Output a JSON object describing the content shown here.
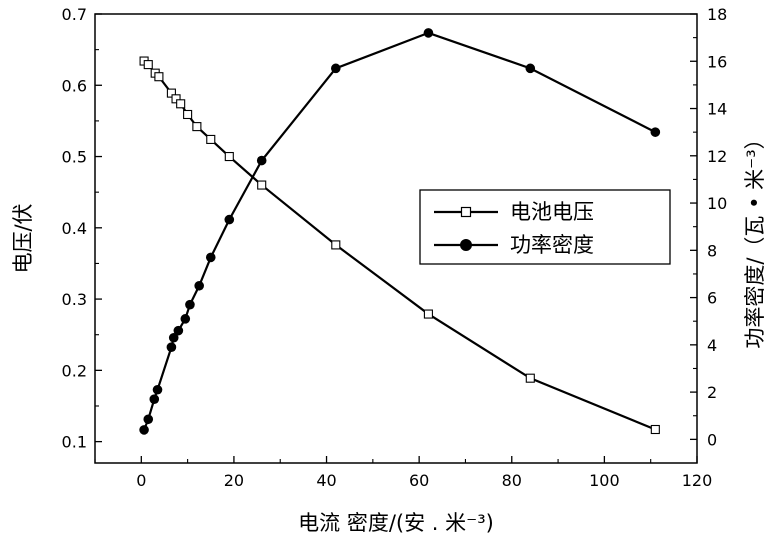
{
  "chart_data": {
    "type": "line",
    "xlabel": "电流 密度/(安 . 米⁻³)",
    "ylabel_left": "电压/伏",
    "ylabel_right": "功率密度/（瓦 • 米⁻³）",
    "xlim": [
      -10,
      120
    ],
    "ylim_left": [
      0.07,
      0.7
    ],
    "ylim_right": [
      -1,
      18
    ],
    "x_ticks": [
      "0",
      "20",
      "40",
      "60",
      "80",
      "100",
      "120"
    ],
    "y_left_ticks": [
      "0.1",
      "0.2",
      "0.3",
      "0.4",
      "0.5",
      "0.6",
      "0.7"
    ],
    "y_right_ticks": [
      "0",
      "2",
      "4",
      "6",
      "8",
      "10",
      "12",
      "14",
      "16",
      "18"
    ],
    "legend_position": "center-right",
    "series": [
      {
        "name": "电池电压",
        "axis": "left",
        "marker": "open-square",
        "color": "#000000",
        "x": [
          0.6,
          1.5,
          3.0,
          3.8,
          6.5,
          7.5,
          8.5,
          10,
          12,
          15,
          19,
          26,
          42,
          62,
          84,
          111
        ],
        "y": [
          0.634,
          0.629,
          0.617,
          0.612,
          0.589,
          0.581,
          0.574,
          0.559,
          0.542,
          0.524,
          0.5,
          0.46,
          0.376,
          0.279,
          0.189,
          0.117
        ]
      },
      {
        "name": "功率密度",
        "axis": "right",
        "marker": "filled-circle",
        "color": "#000000",
        "x": [
          0.6,
          1.5,
          2.8,
          3.5,
          6.5,
          7.0,
          8.0,
          9.5,
          10.5,
          12.5,
          15,
          19,
          26,
          42,
          62,
          84,
          111
        ],
        "y": [
          0.4,
          0.85,
          1.7,
          2.1,
          3.9,
          4.3,
          4.6,
          5.1,
          5.7,
          6.5,
          7.7,
          9.3,
          11.8,
          15.7,
          17.2,
          15.7,
          13.0
        ]
      }
    ]
  }
}
